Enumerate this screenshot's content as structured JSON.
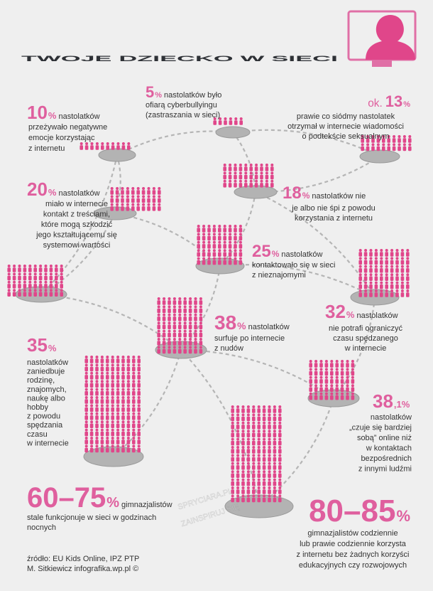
{
  "header": {
    "title": "TWOJE DZIECKO W SIECI"
  },
  "facts": [
    {
      "number": "10",
      "unit": "%",
      "lines": [
        "nastolatków",
        "przeżywało negatywne",
        "emocje korzystając",
        "z internetu"
      ]
    },
    {
      "number": "5",
      "unit": "%",
      "lines": [
        "nastolatków było",
        "ofiarą cyberbullyingu",
        "(zastraszania w sieci)"
      ]
    },
    {
      "prefix": "ok.",
      "number": "13",
      "unit": "%",
      "lines": [
        "prawie co siódmy nastolatek",
        "otrzymał w internecie wiadomości",
        "o podtekście seksualnym"
      ]
    },
    {
      "number": "20",
      "unit": "%",
      "lines": [
        "nastolatków",
        "miało w internecie",
        "kontakt z treściami,",
        "które mogą szkodzić",
        "jego kształtującemu się",
        "systemowi wartości"
      ]
    },
    {
      "number": "18",
      "unit": "%",
      "lines": [
        "nastolatków nie",
        "je albo nie śpi z powodu",
        "korzystania z internetu"
      ]
    },
    {
      "number": "25",
      "unit": "%",
      "lines": [
        "nastolatków",
        "kontaktowało się w sieci",
        "z nieznajomymi"
      ]
    },
    {
      "number": "32",
      "unit": "%",
      "lines": [
        "nastolatków",
        "nie potrafi ograniczyć",
        "czasu spędzanego",
        "w internecie"
      ]
    },
    {
      "number": "38",
      "unit": "%",
      "lines": [
        "nastolatków",
        "surfuje po internecie",
        "z nudów"
      ]
    },
    {
      "number": "35",
      "unit": "%",
      "lines": [
        "nastolatków",
        "zaniedbuje",
        "rodzinę,",
        "znajomych,",
        "naukę albo",
        "hobby",
        "z powodu",
        "spędzania",
        "czasu",
        "w internecie"
      ]
    },
    {
      "number": "38",
      "unit": ",1%",
      "lines": [
        "nastolatków",
        "„czuje się bardziej",
        "sobą” online niż",
        "w kontaktach",
        "bezpośrednich",
        "z innymi ludźmi"
      ]
    },
    {
      "number": "60–75",
      "unit": "%",
      "lines": [
        "gimnazjalistów",
        "stale funkcjonuje w sieci w godzinach",
        "nocnych"
      ]
    },
    {
      "number": "80–85",
      "unit": "%",
      "lines": [
        "gimnazjalistów codziennie",
        "lub prawie codziennie korzysta",
        "z internetu bez żadnych korzyści",
        "edukacyjnych czy rozwojowych"
      ]
    }
  ],
  "footer": {
    "lines": [
      "źródło: EU Kids Online, IPZ PTP",
      "M. Sitkiewicz infografika.wp.pl ©"
    ]
  },
  "watermark": {
    "lines": [
      "SPRYCIARA.PL",
      "ZAINSPIRUJ SIĘ"
    ]
  }
}
